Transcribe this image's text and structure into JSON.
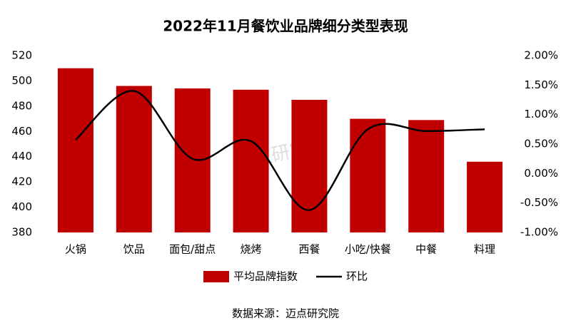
{
  "chart_data": {
    "type": "bar",
    "title": "2022年11月餐饮业品牌细分类型表现",
    "categories": [
      "火锅",
      "饮品",
      "面包/甜点",
      "烧烤",
      "西餐",
      "小吃/快餐",
      "中餐",
      "料理"
    ],
    "series": [
      {
        "name": "平均品牌指数",
        "type": "bar",
        "color": "#c00000",
        "values": [
          510,
          496,
          494,
          493,
          485,
          470,
          469,
          436
        ]
      },
      {
        "name": "环比",
        "type": "line",
        "axis": "y2",
        "color": "#000000",
        "values": [
          0.57,
          1.4,
          0.25,
          0.55,
          -0.62,
          0.75,
          0.72,
          0.75
        ]
      }
    ],
    "ylim": [
      380,
      520
    ],
    "yticks": [
      380,
      400,
      420,
      440,
      460,
      480,
      500,
      520
    ],
    "y2lim": [
      -1,
      2
    ],
    "y2ticks": [
      {
        "value": -1,
        "label": "-1.00%"
      },
      {
        "value": -0.5,
        "label": "-0.50%"
      },
      {
        "value": 0,
        "label": "0.00%"
      },
      {
        "value": 0.5,
        "label": "0.50%"
      },
      {
        "value": 1,
        "label": "1.00%"
      },
      {
        "value": 1.5,
        "label": "1.50%"
      },
      {
        "value": 2,
        "label": "2.00%"
      }
    ],
    "grid": false,
    "legend": "bottom",
    "source": "数据来源：迈点研究院",
    "watermark": "迈点研究院"
  }
}
